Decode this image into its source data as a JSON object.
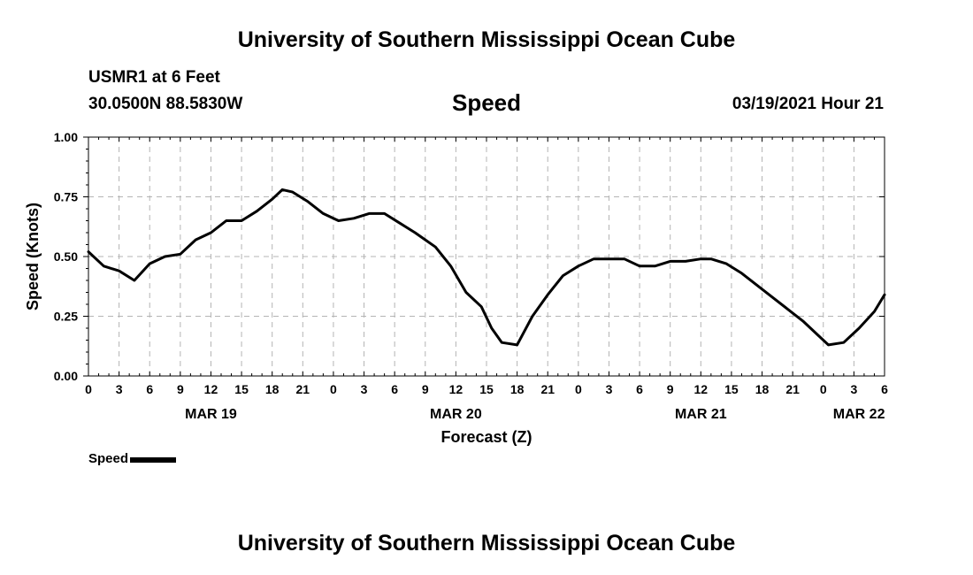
{
  "header": {
    "title": "University of Southern Mississippi Ocean Cube",
    "station": "USMR1 at 6 Feet",
    "coordinates": "30.0500N 88.5830W",
    "variable": "Speed",
    "datetime": "03/19/2021 Hour 21"
  },
  "footer": {
    "title": "University of Southern Mississippi Ocean Cube"
  },
  "legend": {
    "label": "Speed",
    "color": "#000000"
  },
  "chart_data": {
    "type": "line",
    "title": "Speed",
    "xlabel": "Forecast (Z)",
    "ylabel": "Speed (Knots)",
    "ylim": [
      0,
      1
    ],
    "xlim": [
      0,
      78
    ],
    "grid": true,
    "yticks": [
      {
        "value": 0.0,
        "label": "0.00"
      },
      {
        "value": 0.25,
        "label": "0.25"
      },
      {
        "value": 0.5,
        "label": "0.50"
      },
      {
        "value": 0.75,
        "label": "0.75"
      },
      {
        "value": 1.0,
        "label": "1.00"
      }
    ],
    "xticks": [
      {
        "value": 0,
        "label": "0"
      },
      {
        "value": 3,
        "label": "3"
      },
      {
        "value": 6,
        "label": "6"
      },
      {
        "value": 9,
        "label": "9"
      },
      {
        "value": 12,
        "label": "12"
      },
      {
        "value": 15,
        "label": "15"
      },
      {
        "value": 18,
        "label": "18"
      },
      {
        "value": 21,
        "label": "21"
      },
      {
        "value": 24,
        "label": "0"
      },
      {
        "value": 27,
        "label": "3"
      },
      {
        "value": 30,
        "label": "6"
      },
      {
        "value": 33,
        "label": "9"
      },
      {
        "value": 36,
        "label": "12"
      },
      {
        "value": 39,
        "label": "15"
      },
      {
        "value": 42,
        "label": "18"
      },
      {
        "value": 45,
        "label": "21"
      },
      {
        "value": 48,
        "label": "0"
      },
      {
        "value": 51,
        "label": "3"
      },
      {
        "value": 54,
        "label": "6"
      },
      {
        "value": 57,
        "label": "9"
      },
      {
        "value": 60,
        "label": "12"
      },
      {
        "value": 63,
        "label": "15"
      },
      {
        "value": 66,
        "label": "18"
      },
      {
        "value": 69,
        "label": "21"
      },
      {
        "value": 72,
        "label": "0"
      },
      {
        "value": 75,
        "label": "3"
      },
      {
        "value": 78,
        "label": "6"
      }
    ],
    "date_labels": [
      {
        "value": 12,
        "label": "MAR 19"
      },
      {
        "value": 36,
        "label": "MAR 20"
      },
      {
        "value": 60,
        "label": "MAR 21"
      },
      {
        "value": 75.5,
        "label": "MAR 22"
      }
    ],
    "series": [
      {
        "name": "Speed",
        "x": [
          0,
          1.5,
          3,
          4.5,
          6,
          7.5,
          9,
          10.5,
          12,
          13.5,
          15,
          16.5,
          18,
          19,
          20,
          21.5,
          23,
          24.5,
          26,
          27.5,
          29,
          30.5,
          32,
          33,
          34,
          35.5,
          37,
          38.5,
          39.5,
          40.5,
          42,
          43.5,
          45,
          46.5,
          48,
          49.5,
          51,
          52.5,
          54,
          55.5,
          57,
          58.5,
          60,
          61,
          62.5,
          64,
          65.5,
          67,
          68.5,
          70,
          71.5,
          72.5,
          74,
          75.5,
          77,
          78
        ],
        "values": [
          0.52,
          0.46,
          0.44,
          0.4,
          0.47,
          0.5,
          0.51,
          0.57,
          0.6,
          0.65,
          0.65,
          0.69,
          0.74,
          0.78,
          0.77,
          0.73,
          0.68,
          0.65,
          0.66,
          0.68,
          0.68,
          0.64,
          0.6,
          0.57,
          0.54,
          0.46,
          0.35,
          0.29,
          0.2,
          0.14,
          0.13,
          0.25,
          0.34,
          0.42,
          0.46,
          0.49,
          0.49,
          0.49,
          0.46,
          0.46,
          0.48,
          0.48,
          0.49,
          0.49,
          0.47,
          0.43,
          0.38,
          0.33,
          0.28,
          0.23,
          0.17,
          0.13,
          0.14,
          0.2,
          0.27,
          0.34
        ]
      }
    ]
  }
}
